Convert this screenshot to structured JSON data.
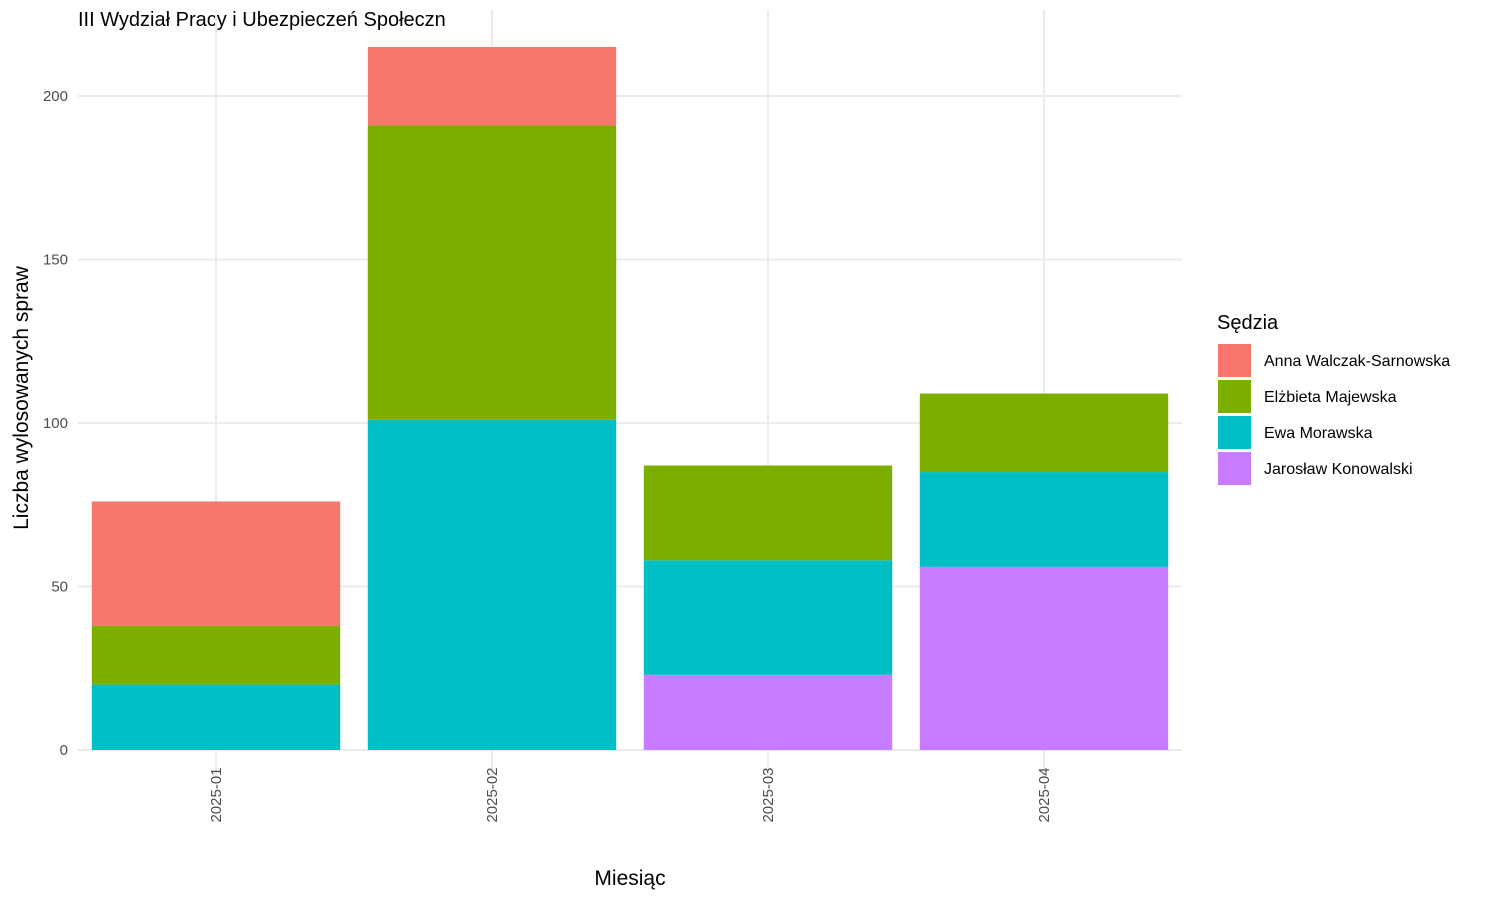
{
  "chart_data": {
    "type": "bar",
    "stacked": true,
    "title": "III Wydział Pracy i Ubezpieczeń Społeczn",
    "xlabel": "Miesiąc",
    "ylabel": "Liczba wylosowanych spraw",
    "ylim": [
      0,
      225
    ],
    "yticks": [
      0,
      50,
      100,
      150,
      200
    ],
    "grid": true,
    "legend": {
      "title": "Sędzia",
      "position": "right"
    },
    "categories": [
      "2025-01",
      "2025-02",
      "2025-03",
      "2025-04"
    ],
    "series": [
      {
        "name": "Anna Walczak-Sarnowska",
        "color": "#F8766D",
        "values": [
          38,
          24,
          0,
          0
        ]
      },
      {
        "name": "Elżbieta Majewska",
        "color": "#7CAE00",
        "values": [
          18,
          90,
          29,
          24
        ]
      },
      {
        "name": "Ewa Morawska",
        "color": "#00BFC4",
        "values": [
          20,
          101,
          35,
          29
        ]
      },
      {
        "name": "Jarosław Konowalski",
        "color": "#C77CFF",
        "values": [
          0,
          0,
          23,
          56
        ]
      }
    ]
  }
}
